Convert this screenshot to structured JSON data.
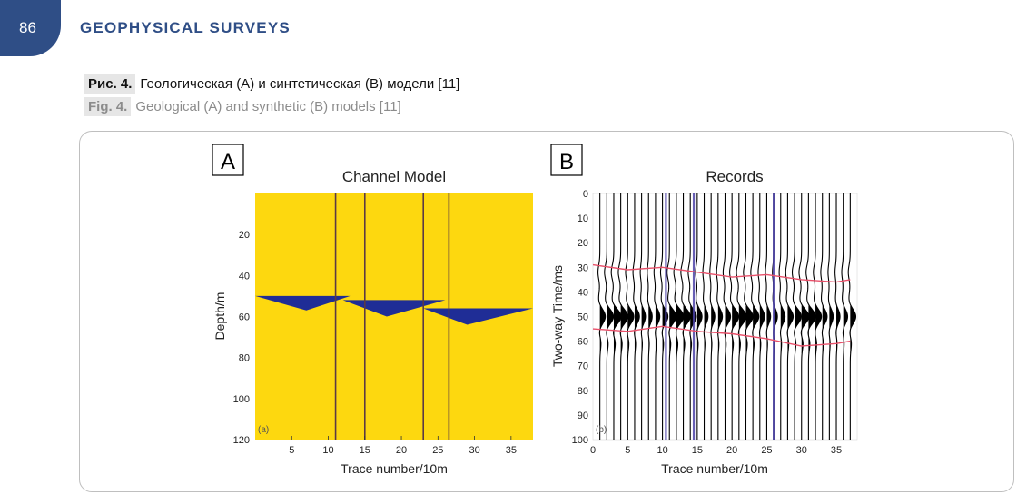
{
  "header": {
    "page_number": "86",
    "running_title": "GEOPHYSICAL SURVEYS"
  },
  "caption": {
    "ru_label": "Рис. 4.",
    "ru_text": "Геологическая (A) и синтетическая (B) модели [11]",
    "en_label": "Fig. 4.",
    "en_text": "Geological (A) and synthetic (B) models [11]"
  },
  "colors": {
    "accent": "#2f4e86",
    "model_fill": "#fdd80f",
    "channel": "#1f2d96",
    "trace": "#000000",
    "horizon": "#e8506a"
  },
  "chart_data": [
    {
      "type": "heatmap",
      "panel_label": "A",
      "subplot_tag": "(a)",
      "title": "Channel Model",
      "xlabel": "Trace number/10m",
      "ylabel": "Depth/m",
      "xlim": [
        0,
        38
      ],
      "ylim": [
        0,
        120
      ],
      "x_ticks": [
        "5",
        "10",
        "15",
        "20",
        "25",
        "30",
        "35"
      ],
      "x_tick_values": [
        5,
        10,
        15,
        20,
        25,
        30,
        35
      ],
      "y_ticks": [
        "20",
        "40",
        "60",
        "80",
        "100",
        "120"
      ],
      "y_tick_values": [
        20,
        40,
        60,
        80,
        100,
        120
      ],
      "background_value": "sandstone (yellow)",
      "channel_top_depth": 50,
      "channels": [
        {
          "x_start": 0,
          "x_end": 13,
          "depth_top": 50,
          "depth_bottom": 57,
          "deepest_at": 7
        },
        {
          "x_start": 12,
          "x_end": 26,
          "depth_top": 52,
          "depth_bottom": 60,
          "deepest_at": 18
        },
        {
          "x_start": 23,
          "x_end": 38,
          "depth_top": 56,
          "depth_bottom": 64,
          "deepest_at": 29
        }
      ],
      "vertical_markers": [
        11,
        15,
        23,
        26.5
      ]
    },
    {
      "type": "line",
      "panel_label": "B",
      "subplot_tag": "(b)",
      "title": "Records",
      "xlabel": "Trace number/10m",
      "ylabel": "Two-way Time/ms",
      "xlim": [
        0,
        38
      ],
      "ylim": [
        0,
        100
      ],
      "x_ticks": [
        "0",
        "5",
        "10",
        "15",
        "20",
        "25",
        "30",
        "35"
      ],
      "x_tick_values": [
        0,
        5,
        10,
        15,
        20,
        25,
        30,
        35
      ],
      "y_ticks": [
        "0",
        "10",
        "20",
        "30",
        "40",
        "50",
        "60",
        "70",
        "80",
        "90",
        "100"
      ],
      "y_tick_values": [
        0,
        10,
        20,
        30,
        40,
        50,
        60,
        70,
        80,
        90,
        100
      ],
      "trace_count": 37,
      "event_time_ms": 50,
      "horizons": [
        {
          "name": "upper",
          "x": [
            0,
            5,
            10,
            15,
            20,
            25,
            30,
            35,
            37
          ],
          "t": [
            29,
            31,
            30,
            32,
            34,
            33,
            35,
            36,
            35
          ]
        },
        {
          "name": "lower",
          "x": [
            0,
            5,
            10,
            15,
            20,
            25,
            30,
            35,
            37
          ],
          "t": [
            55,
            56,
            54,
            56,
            57,
            59,
            62,
            61,
            60
          ]
        }
      ],
      "vertical_markers": [
        10.5,
        14.5,
        26
      ]
    }
  ]
}
